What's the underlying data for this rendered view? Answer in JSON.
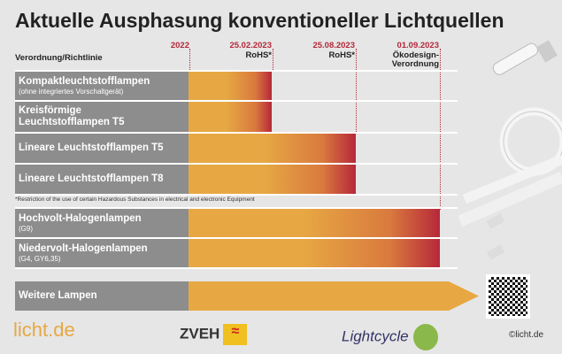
{
  "title": "Aktuelle Ausphasung konventioneller Lichtquellen",
  "column_header": "Verordnung/Richtlinie",
  "milestones": [
    {
      "date": "2022",
      "label": ""
    },
    {
      "date": "25.02.2023",
      "label": "RoHS*"
    },
    {
      "date": "25.08.2023",
      "label": "RoHS*"
    },
    {
      "date": "01.09.2023",
      "label": "Ökodesign-\nVerordnung"
    }
  ],
  "rows": [
    {
      "name": "Kompaktleuchtstofflampen",
      "note": "(ohne integriertes Vorschaltgerät)",
      "ends": "25.02.2023"
    },
    {
      "name": "Kreisförmige Leuchtstofflampen T5",
      "note": "",
      "ends": "25.02.2023"
    },
    {
      "name": "Lineare Leuchtstofflampen T5",
      "note": "",
      "ends": "25.08.2023"
    },
    {
      "name": "Lineare Leuchtstofflampen T8",
      "note": "",
      "ends": "25.08.2023"
    },
    {
      "name": "Hochvolt-Halogenlampen",
      "note": "(G9)",
      "ends": "01.09.2023"
    },
    {
      "name": "Niedervolt-Halogenlampen",
      "note": "(G4, GY6,35)",
      "ends": "01.09.2023"
    },
    {
      "name": "Weitere Lampen",
      "note": "",
      "ends": "ongoing"
    }
  ],
  "footnote": "*Restriction of the use of certain Hazardous Substances in electrical and electronic Equipment",
  "footer": {
    "logo1": "licht.de",
    "logo2": "ZVEH",
    "logo3": "Lightcycle",
    "copyright": "©licht.de"
  },
  "colors": {
    "label_bg": "#8d8d8d",
    "bar_start": "#e7a843",
    "bar_end": "#b7283a",
    "date": "#b5283a"
  }
}
